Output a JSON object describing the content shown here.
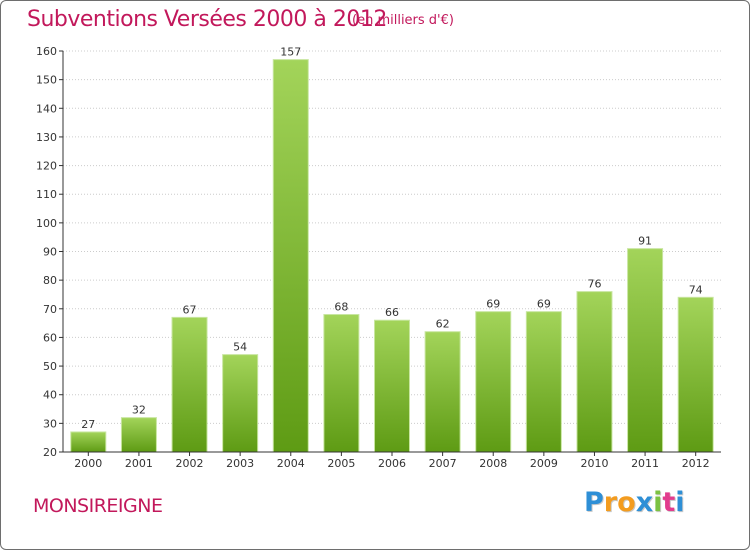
{
  "title": "Subventions Versées 2000 à 2012",
  "subtitle": "(en milliers d'€)",
  "commune": "MONSIREIGNE",
  "brand": {
    "letters": [
      "P",
      "r",
      "o",
      "x",
      "i",
      "t",
      "i"
    ],
    "colors": [
      "#2e8fd6",
      "#f39c1f",
      "#f39c1f",
      "#2e8fd6",
      "#7cc242",
      "#e23c8d",
      "#2e8fd6"
    ]
  },
  "colors": {
    "accent": "#c2185b",
    "bar_light": "#a3d45a",
    "bar_dark": "#5e9b14",
    "grid": "#cccccc",
    "axis": "#333333"
  },
  "chart_data": {
    "type": "bar",
    "categories": [
      "2000",
      "2001",
      "2002",
      "2003",
      "2004",
      "2005",
      "2006",
      "2007",
      "2008",
      "2009",
      "2010",
      "2011",
      "2012"
    ],
    "values": [
      27,
      32,
      67,
      54,
      157,
      68,
      66,
      62,
      69,
      69,
      76,
      91,
      74
    ],
    "ylim": [
      20,
      160
    ],
    "yticks": [
      20,
      30,
      40,
      50,
      60,
      70,
      80,
      90,
      100,
      110,
      120,
      130,
      140,
      150,
      160
    ],
    "grid": "horizontal dotted",
    "data_labels": true
  }
}
